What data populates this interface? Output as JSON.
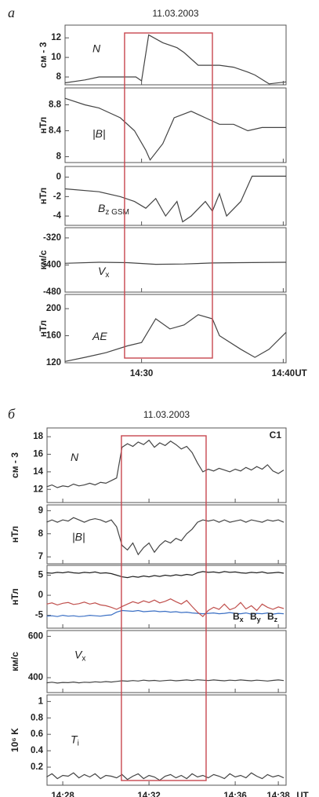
{
  "chart_data": [
    {
      "type": "stacked-line",
      "label": "а",
      "title": "11.03.2003",
      "x_unit": "UT",
      "xlim": [
        24.6,
        40.2
      ],
      "xticks": [
        {
          "value": 30,
          "label": "14:30"
        },
        {
          "value": 40,
          "label": "14:40"
        }
      ],
      "highlight_x": [
        28.8,
        35
      ],
      "highlight_color": "#c8474f",
      "panels": [
        {
          "ylabel": "см - 3",
          "annotation": "N",
          "ylim": [
            7.2,
            13.3
          ],
          "yticks": [
            8,
            10,
            12
          ],
          "x": [
            24.6,
            26,
            27,
            28,
            29,
            29.6,
            30,
            30.5,
            31.5,
            32.5,
            33,
            34,
            35.5,
            36.5,
            37.5,
            38,
            39,
            40.2
          ],
          "series": [
            {
              "color": "#444444",
              "values": [
                7.4,
                7.7,
                8,
                8,
                8,
                8,
                7.6,
                12.3,
                11.5,
                11,
                10.5,
                9.2,
                9.2,
                9,
                8.5,
                8.2,
                7.3,
                7.5
              ]
            }
          ]
        },
        {
          "ylabel": "нТл",
          "annotation": "|B|",
          "ylim": [
            7.91,
            9.06
          ],
          "yticks": [
            8,
            8.4,
            8.8
          ],
          "x": [
            24.6,
            26,
            27,
            28.5,
            29.5,
            30.3,
            30.6,
            31.5,
            32.3,
            33.5,
            34.5,
            35.5,
            36.5,
            37.5,
            38.5,
            40.2
          ],
          "series": [
            {
              "color": "#444444",
              "values": [
                8.9,
                8.8,
                8.75,
                8.6,
                8.4,
                8.1,
                7.95,
                8.2,
                8.6,
                8.7,
                8.6,
                8.5,
                8.5,
                8.4,
                8.45,
                8.45
              ]
            }
          ]
        },
        {
          "ylabel": "нТл",
          "annotation": "B",
          "annotation_sub": "z GSM",
          "ylim": [
            -4.96,
            1.1
          ],
          "yticks": [
            -4,
            -2,
            0
          ],
          "x": [
            24.6,
            27,
            28.5,
            29.5,
            30.3,
            31,
            31.7,
            32.5,
            32.9,
            33.5,
            34.5,
            35,
            35.5,
            36,
            37,
            37.8,
            40.2
          ],
          "series": [
            {
              "color": "#444444",
              "values": [
                -1.2,
                -1.5,
                -2,
                -2.5,
                -3.2,
                -2.2,
                -4,
                -2.5,
                -4.6,
                -4,
                -2.5,
                -3.5,
                -1.7,
                -4,
                -2.5,
                0.1,
                0.1
              ]
            }
          ]
        },
        {
          "ylabel": "км/с",
          "annotation": "V",
          "annotation_sub": "x",
          "ylim": [
            -480,
            -290
          ],
          "yticks": [
            -480,
            -400,
            -320
          ],
          "x": [
            24.6,
            27,
            29,
            31,
            33,
            35,
            37,
            40.2
          ],
          "series": [
            {
              "color": "#444444",
              "values": [
                -395,
                -392,
                -393,
                -398,
                -397,
                -394,
                -393,
                -392
              ]
            }
          ]
        },
        {
          "ylabel": "нТл",
          "annotation": "AE",
          "ylim": [
            120,
            221
          ],
          "yticks": [
            120,
            160,
            200
          ],
          "x": [
            24.6,
            26,
            27.5,
            29,
            30,
            31,
            32,
            33,
            34,
            35,
            35.5,
            37,
            38,
            39,
            40.2
          ],
          "series": [
            {
              "color": "#444444",
              "values": [
                122,
                128,
                135,
                145,
                150,
                185,
                170,
                176,
                191,
                185,
                160,
                140,
                128,
                140,
                165
              ]
            }
          ]
        }
      ]
    },
    {
      "type": "stacked-line",
      "label": "б",
      "title": "11.03.2003",
      "x_unit": "UT",
      "annotation": "C1",
      "xlim": [
        27.27,
        38.36
      ],
      "xticks": [
        {
          "value": 28,
          "label": "14:28"
        },
        {
          "value": 32,
          "label": "14:32"
        },
        {
          "value": 36,
          "label": "14:36"
        },
        {
          "value": 38,
          "label": "14:38"
        }
      ],
      "highlight_x": [
        30.72,
        34.65
      ],
      "highlight_color": "#c8474f",
      "x": [
        27.25,
        27.5,
        27.75,
        28,
        28.25,
        28.5,
        28.75,
        29,
        29.25,
        29.5,
        29.75,
        30,
        30.25,
        30.5,
        30.75,
        31,
        31.25,
        31.5,
        31.75,
        32,
        32.25,
        32.5,
        32.75,
        33,
        33.25,
        33.5,
        33.75,
        34,
        34.25,
        34.5,
        34.75,
        35,
        35.25,
        35.5,
        35.75,
        36,
        36.25,
        36.5,
        36.75,
        37,
        37.25,
        37.5,
        37.75,
        38,
        38.25
      ],
      "panels": [
        {
          "ylabel": "см - 3",
          "annotation": "N",
          "ylim": [
            10.5,
            19
          ],
          "yticks": [
            12,
            14,
            16,
            18
          ],
          "series": [
            {
              "color": "#444444",
              "values": [
                12.3,
                12.5,
                12.2,
                12.4,
                12.3,
                12.6,
                12.4,
                12.5,
                12.7,
                12.5,
                12.8,
                12.7,
                13.0,
                13.3,
                16.8,
                17.2,
                16.9,
                17.4,
                17.1,
                17.6,
                16.8,
                17.3,
                17.0,
                17.5,
                17.1,
                16.6,
                16.9,
                16.2,
                15.0,
                14.0,
                14.3,
                14.1,
                14.4,
                14.2,
                14.0,
                14.3,
                14.1,
                14.5,
                14.2,
                14.6,
                14.3,
                14.8,
                14.1,
                13.8,
                14.2
              ]
            }
          ]
        },
        {
          "ylabel": "нТл",
          "annotation": "|B|",
          "ylim": [
            6.7,
            9.25
          ],
          "yticks": [
            7,
            8,
            9
          ],
          "series": [
            {
              "color": "#444444",
              "values": [
                8.5,
                8.6,
                8.5,
                8.6,
                8.55,
                8.7,
                8.6,
                8.5,
                8.6,
                8.65,
                8.6,
                8.5,
                8.6,
                8.3,
                7.5,
                7.3,
                7.6,
                7.1,
                7.4,
                7.6,
                7.2,
                7.5,
                7.7,
                7.6,
                7.8,
                7.7,
                8.0,
                8.2,
                8.5,
                8.6,
                8.55,
                8.6,
                8.5,
                8.6,
                8.5,
                8.55,
                8.6,
                8.5,
                8.6,
                8.55,
                8.5,
                8.6,
                8.55,
                8.6,
                8.5
              ]
            }
          ]
        },
        {
          "ylabel": "нТл",
          "ylim": [
            -8.2,
            7.45
          ],
          "yticks": [
            -5,
            0,
            5
          ],
          "series": [
            {
              "name": "Bx",
              "color": "#222222",
              "values": [
                5.6,
                5.5,
                5.7,
                5.6,
                5.8,
                5.6,
                5.5,
                5.7,
                5.6,
                5.8,
                5.5,
                5.6,
                5.4,
                5.0,
                4.6,
                4.4,
                4.7,
                4.5,
                4.8,
                4.6,
                4.9,
                4.7,
                5.0,
                4.8,
                5.1,
                4.9,
                5.2,
                5.0,
                5.6,
                5.9,
                5.7,
                5.8,
                5.6,
                5.9,
                5.7,
                5.8,
                5.6,
                5.5,
                5.7,
                5.6,
                5.8,
                5.5,
                5.6,
                5.7,
                5.5
              ]
            },
            {
              "name": "By",
              "color": "#3a6fc4",
              "values": [
                -5.2,
                -5.1,
                -5.3,
                -5.0,
                -5.2,
                -5.1,
                -5.3,
                -5.2,
                -5.0,
                -5.1,
                -5.2,
                -5.0,
                -4.9,
                -4.2,
                -3.8,
                -3.9,
                -4.0,
                -3.8,
                -4.1,
                -4.0,
                -3.9,
                -4.1,
                -4.0,
                -4.2,
                -4.1,
                -4.3,
                -4.2,
                -4.4,
                -4.5,
                -4.6,
                -4.5,
                -4.4,
                -4.6,
                -4.5,
                -4.3,
                -4.5,
                -4.6,
                -4.4,
                -4.7,
                -4.5,
                -4.6,
                -4.4,
                -4.7,
                -4.5,
                -4.6
              ]
            },
            {
              "name": "Bz",
              "color": "#c0504d",
              "values": [
                -2.2,
                -1.9,
                -2.4,
                -2.0,
                -1.8,
                -2.3,
                -2.1,
                -1.7,
                -2.2,
                -1.9,
                -2.4,
                -2.6,
                -3.0,
                -3.5,
                -2.8,
                -2.2,
                -1.6,
                -2.0,
                -1.4,
                -1.8,
                -1.2,
                -1.9,
                -1.5,
                -0.9,
                -1.6,
                -2.2,
                -1.3,
                -2.8,
                -4.2,
                -5.3,
                -3.8,
                -3.0,
                -3.5,
                -2.2,
                -3.6,
                -3.1,
                -1.8,
                -3.4,
                -2.6,
                -3.8,
                -2.2,
                -3.0,
                -3.5,
                -2.9,
                -3.3
              ]
            }
          ]
        },
        {
          "ylabel": "км/с",
          "annotation": "V",
          "annotation_sub": "x",
          "ylim": [
            328,
            628
          ],
          "yticks": [
            400,
            600
          ],
          "series": [
            {
              "color": "#444444",
              "values": [
                375,
                378,
                374,
                377,
                376,
                379,
                375,
                378,
                377,
                380,
                378,
                381,
                379,
                382,
                385,
                383,
                386,
                384,
                388,
                385,
                387,
                384,
                386,
                388,
                385,
                387,
                389,
                386,
                390,
                388,
                386,
                389,
                387,
                385,
                388,
                386,
                389,
                387,
                385,
                388,
                386,
                384,
                387,
                389,
                386
              ]
            }
          ]
        },
        {
          "ylabel": "10⁶ K",
          "annotation": "T",
          "annotation_sub": "i",
          "ylim": [
            -0.02,
            1.08
          ],
          "yticks": [
            0.2,
            0.4,
            0.6,
            0.8,
            1
          ],
          "series": [
            {
              "color": "#444444",
              "values": [
                0.08,
                0.12,
                0.06,
                0.1,
                0.09,
                0.13,
                0.07,
                0.11,
                0.08,
                0.12,
                0.06,
                0.1,
                0.09,
                0.07,
                0.11,
                0.05,
                0.09,
                0.12,
                0.06,
                0.1,
                0.08,
                0.04,
                0.09,
                0.11,
                0.07,
                0.1,
                0.06,
                0.12,
                0.08,
                0.1,
                0.07,
                0.11,
                0.09,
                0.06,
                0.12,
                0.08,
                0.1,
                0.07,
                0.13,
                0.09,
                0.06,
                0.11,
                0.08,
                0.1,
                0.07
              ]
            }
          ]
        }
      ]
    }
  ]
}
